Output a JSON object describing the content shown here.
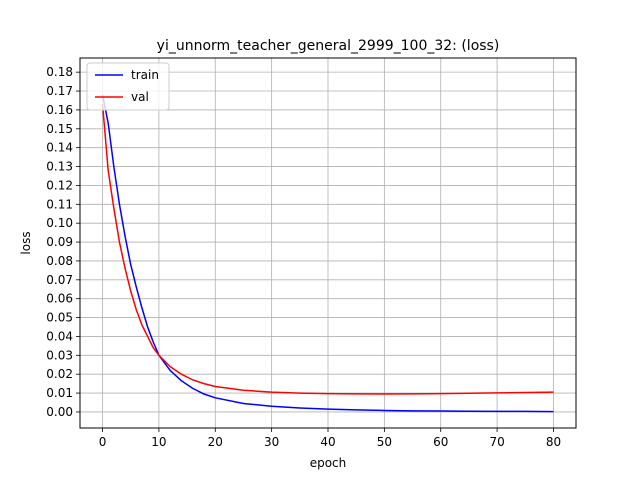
{
  "chart_data": {
    "type": "line",
    "title": "yi_unnorm_teacher_general_2999_100_32: (loss)",
    "xlabel": "epoch",
    "ylabel": "loss",
    "xlim": [
      -4,
      84
    ],
    "ylim": [
      -0.0085,
      0.1875
    ],
    "xticks": [
      0,
      10,
      20,
      30,
      40,
      50,
      60,
      70,
      80
    ],
    "yticks": [
      0.0,
      0.01,
      0.02,
      0.03,
      0.04,
      0.05,
      0.06,
      0.07,
      0.08,
      0.09,
      0.1,
      0.11,
      0.12,
      0.13,
      0.14,
      0.15,
      0.16,
      0.17,
      0.18
    ],
    "grid": true,
    "legend": "top-left",
    "series": [
      {
        "name": "train",
        "color": "#0000ff",
        "x": [
          0,
          1,
          2,
          3,
          4,
          5,
          6,
          7,
          8,
          9,
          10,
          12,
          14,
          16,
          18,
          20,
          25,
          30,
          35,
          40,
          45,
          50,
          55,
          60,
          65,
          70,
          75,
          80
        ],
        "y": [
          0.168,
          0.153,
          0.13,
          0.11,
          0.093,
          0.078,
          0.066,
          0.055,
          0.045,
          0.037,
          0.03,
          0.022,
          0.0165,
          0.0125,
          0.0095,
          0.0075,
          0.0045,
          0.003,
          0.0021,
          0.0015,
          0.0011,
          0.0008,
          0.0006,
          0.0005,
          0.0004,
          0.0003,
          0.0003,
          0.0002
        ]
      },
      {
        "name": "val",
        "color": "#ff0000",
        "x": [
          0,
          1,
          2,
          3,
          4,
          5,
          6,
          7,
          8,
          9,
          10,
          12,
          14,
          16,
          18,
          20,
          25,
          30,
          35,
          40,
          45,
          50,
          55,
          60,
          65,
          70,
          75,
          80
        ],
        "y": [
          0.163,
          0.128,
          0.108,
          0.09,
          0.076,
          0.064,
          0.054,
          0.046,
          0.04,
          0.034,
          0.03,
          0.024,
          0.02,
          0.017,
          0.015,
          0.0135,
          0.0115,
          0.0105,
          0.01,
          0.0097,
          0.0096,
          0.0095,
          0.0096,
          0.0097,
          0.0099,
          0.0101,
          0.0103,
          0.0105
        ]
      }
    ]
  }
}
